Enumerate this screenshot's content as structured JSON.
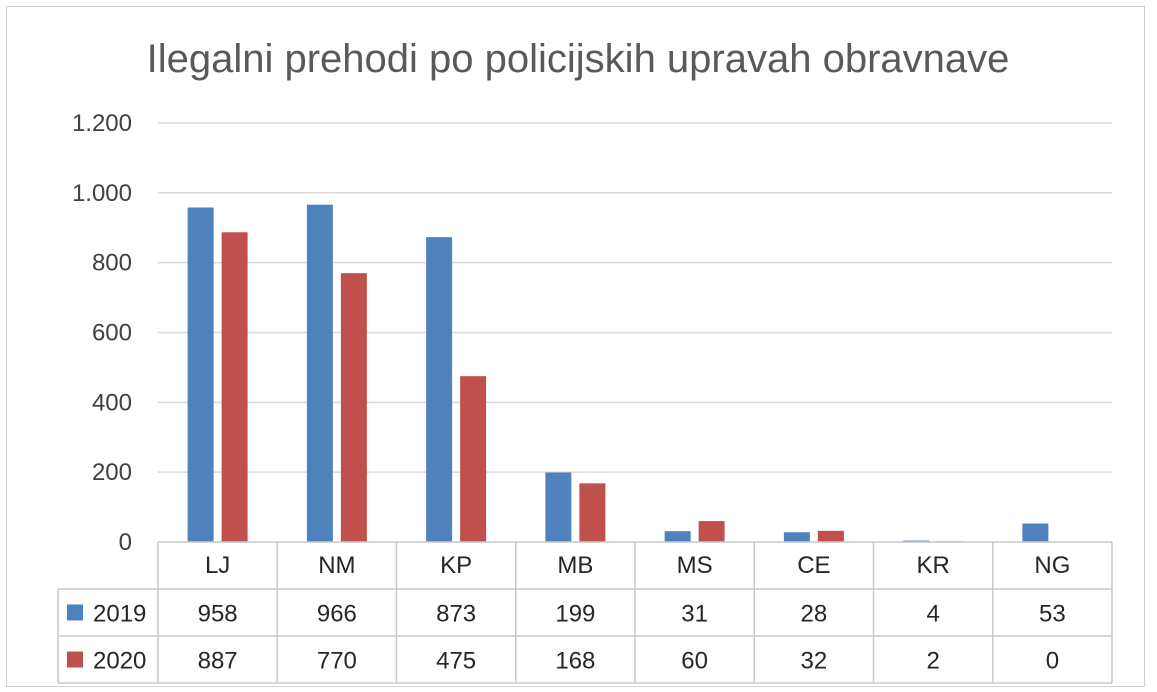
{
  "chart_data": {
    "type": "bar",
    "title": "Ilegalni prehodi po policijskih upravah obravnave",
    "categories": [
      "LJ",
      "NM",
      "KP",
      "MB",
      "MS",
      "CE",
      "KR",
      "NG"
    ],
    "series": [
      {
        "name": "2019",
        "color": "#4f81bd",
        "values": [
          958,
          966,
          873,
          199,
          31,
          28,
          4,
          53
        ]
      },
      {
        "name": "2020",
        "color": "#c0504d",
        "values": [
          887,
          770,
          475,
          168,
          60,
          32,
          2,
          0
        ]
      }
    ],
    "ylim": [
      0,
      1200
    ],
    "yticks": [
      0,
      200,
      400,
      600,
      800,
      1000,
      1200
    ],
    "ytick_labels": [
      "0",
      "200",
      "400",
      "600",
      "800",
      "1.000",
      "1.200"
    ],
    "grid": true,
    "legend": "data-table",
    "data_table": true
  }
}
